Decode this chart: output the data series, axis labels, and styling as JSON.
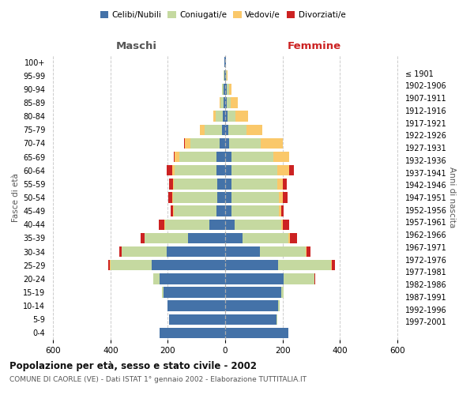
{
  "age_groups": [
    "0-4",
    "5-9",
    "10-14",
    "15-19",
    "20-24",
    "25-29",
    "30-34",
    "35-39",
    "40-44",
    "45-49",
    "50-54",
    "55-59",
    "60-64",
    "65-69",
    "70-74",
    "75-79",
    "80-84",
    "85-89",
    "90-94",
    "95-99",
    "100+"
  ],
  "birth_years": [
    "1997-2001",
    "1992-1996",
    "1987-1991",
    "1982-1986",
    "1977-1981",
    "1972-1976",
    "1967-1971",
    "1962-1966",
    "1957-1961",
    "1952-1956",
    "1947-1951",
    "1942-1946",
    "1937-1941",
    "1932-1936",
    "1927-1931",
    "1922-1926",
    "1917-1921",
    "1912-1916",
    "1907-1911",
    "1902-1906",
    "≤ 1901"
  ],
  "maschi": {
    "celibi": [
      230,
      195,
      200,
      215,
      230,
      255,
      205,
      130,
      55,
      30,
      28,
      28,
      30,
      30,
      20,
      12,
      8,
      5,
      5,
      3,
      2
    ],
    "coniugati": [
      0,
      0,
      2,
      5,
      20,
      145,
      155,
      150,
      155,
      150,
      155,
      150,
      145,
      130,
      100,
      60,
      25,
      12,
      5,
      2,
      0
    ],
    "vedovi": [
      0,
      0,
      0,
      0,
      0,
      2,
      2,
      2,
      2,
      2,
      3,
      5,
      10,
      15,
      20,
      15,
      8,
      3,
      2,
      0,
      0
    ],
    "divorziati": [
      0,
      0,
      0,
      0,
      2,
      5,
      8,
      12,
      20,
      8,
      12,
      12,
      18,
      3,
      2,
      0,
      0,
      0,
      0,
      0,
      0
    ]
  },
  "femmine": {
    "nubili": [
      220,
      180,
      185,
      195,
      205,
      185,
      120,
      60,
      32,
      22,
      22,
      22,
      22,
      22,
      15,
      10,
      8,
      5,
      5,
      3,
      2
    ],
    "coniugate": [
      0,
      2,
      5,
      10,
      105,
      185,
      160,
      160,
      165,
      165,
      165,
      160,
      160,
      145,
      110,
      65,
      28,
      15,
      8,
      2,
      0
    ],
    "vedove": [
      0,
      0,
      0,
      0,
      2,
      3,
      3,
      5,
      5,
      8,
      15,
      20,
      40,
      55,
      75,
      55,
      45,
      25,
      10,
      2,
      0
    ],
    "divorziate": [
      0,
      0,
      0,
      0,
      3,
      10,
      15,
      25,
      20,
      10,
      15,
      12,
      18,
      2,
      2,
      0,
      0,
      0,
      0,
      0,
      0
    ]
  },
  "colors": {
    "celibi": "#4472a8",
    "coniugati": "#c5d9a0",
    "vedovi": "#fac86a",
    "divorziati": "#cc2222"
  },
  "title": "Popolazione per età, sesso e stato civile - 2002",
  "subtitle": "COMUNE DI CAORLE (VE) - Dati ISTAT 1° gennaio 2002 - Elaborazione TUTTITALIA.IT",
  "xlabel_left": "Maschi",
  "xlabel_right": "Femmine",
  "ylabel_left": "Fasce di età",
  "ylabel_right": "Anni di nascita",
  "xlim": 620,
  "background_color": "#ffffff",
  "grid_color": "#cccccc",
  "legend_labels": [
    "Celibi/Nubili",
    "Coniugati/e",
    "Vedovi/e",
    "Divorziati/e"
  ]
}
